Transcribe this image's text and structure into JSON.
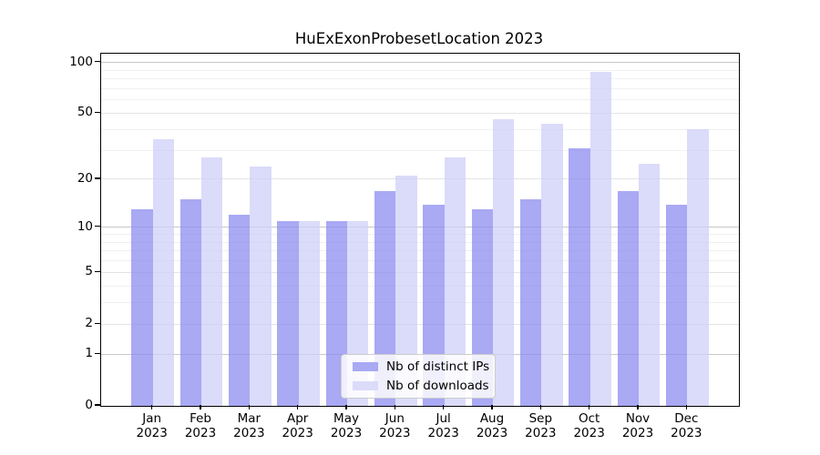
{
  "title": "HuExExonProbesetLocation 2023",
  "chart_data": {
    "type": "bar",
    "title": "HuExExonProbesetLocation 2023",
    "xlabel": "",
    "ylabel": "",
    "scale": "log1p",
    "ylim": [
      0,
      115
    ],
    "grid": true,
    "legend_position": "bottom-center-inside",
    "categories": [
      "Jan",
      "Feb",
      "Mar",
      "Apr",
      "May",
      "Jun",
      "Jul",
      "Aug",
      "Sep",
      "Oct",
      "Nov",
      "Dec"
    ],
    "year_label": "2023",
    "series": [
      {
        "name": "Nb of distinct IPs",
        "color": "#a9a9f4",
        "fill": "rgba(140,140,240,0.75)",
        "values": [
          13,
          15,
          12,
          11,
          11,
          17,
          14,
          13,
          15,
          31,
          17,
          14
        ]
      },
      {
        "name": "Nb of downloads",
        "color": "#dbdbfa",
        "fill": "rgba(207,207,248,0.75)",
        "values": [
          35,
          27,
          24,
          11,
          11,
          21,
          27,
          46,
          43,
          88,
          25,
          40
        ]
      }
    ],
    "yticks": [
      0,
      1,
      2,
      5,
      10,
      20,
      50,
      100
    ],
    "minor_gridlines": [
      3,
      4,
      6,
      7,
      8,
      9,
      30,
      40,
      60,
      70,
      80,
      90
    ],
    "mid_gridlines": [
      2,
      5,
      20,
      50
    ],
    "major_gridlines": [
      1,
      10,
      100
    ]
  }
}
